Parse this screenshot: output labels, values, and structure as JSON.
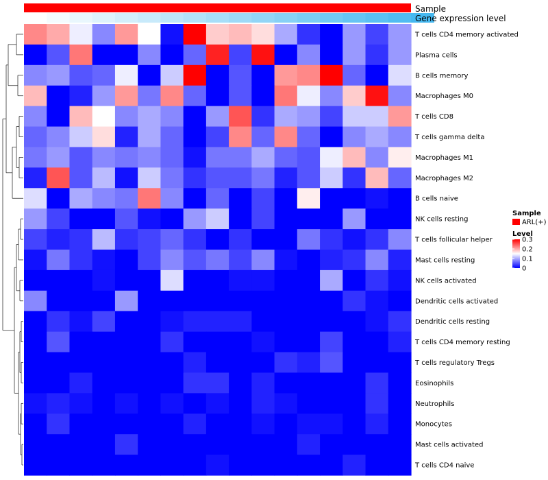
{
  "colors": {
    "low": "#0000ff",
    "mid": "#ffffff",
    "high": "#ff0000",
    "sample_bar": "#ff0000",
    "gene_expr_start": "#ffffff",
    "gene_expr_end": "#45b8f0",
    "dendrogram": "#333333"
  },
  "chart_data": {
    "type": "heatmap",
    "annotations": {
      "sample_label": "Sample",
      "gene_expression_label": "Gene expression level",
      "gene_expression_values": [
        0.0,
        0.059,
        0.118,
        0.176,
        0.235,
        0.294,
        0.353,
        0.412,
        0.471,
        0.529,
        0.588,
        0.647,
        0.706,
        0.765,
        0.824,
        0.882,
        0.941,
        1.0
      ]
    },
    "legend": {
      "sample_title": "Sample",
      "sample_entry": "ARL(+)",
      "level_title": "Level",
      "ticks": [
        "0.3",
        "0.2",
        "0.1",
        "0"
      ],
      "tick_values": [
        0.3,
        0.2,
        0.1,
        0
      ],
      "range": [
        0,
        0.3
      ]
    },
    "rows": [
      "T cells CD4 memory activated",
      "Plasma cells",
      "B cells memory",
      "Macrophages M0",
      "T cells CD8",
      "T cells gamma delta",
      "Macrophages M1",
      "Macrophages M2",
      "B cells naive",
      "NK cells resting",
      "T cells follicular helper",
      "Mast cells resting",
      "NK cells activated",
      "Dendritic cells activated",
      "Dendritic cells resting",
      "T cells CD4 memory resting",
      "T cells regulatory  Tregs",
      "Eosinophils",
      "Neutrophils",
      "Monocytes",
      "Mast cells activated",
      "T cells CD4 naive"
    ],
    "values": [
      [
        0.22,
        0.2,
        0.14,
        0.08,
        0.21,
        0.15,
        0.01,
        0.3,
        0.18,
        0.19,
        0.17,
        0.1,
        0.03,
        0.0,
        0.09,
        0.04,
        0.09
      ],
      [
        0.0,
        0.05,
        0.23,
        0.0,
        0.0,
        0.08,
        0.0,
        0.06,
        0.28,
        0.04,
        0.29,
        0.0,
        0.08,
        0.0,
        0.09,
        0.03,
        0.09
      ],
      [
        0.08,
        0.09,
        0.05,
        0.06,
        0.14,
        0.0,
        0.12,
        0.3,
        0.0,
        0.05,
        0.0,
        0.21,
        0.22,
        0.3,
        0.06,
        0.0,
        0.13
      ],
      [
        0.19,
        0.0,
        0.02,
        0.09,
        0.21,
        0.07,
        0.22,
        0.06,
        0.0,
        0.05,
        0.0,
        0.23,
        0.14,
        0.08,
        0.18,
        0.29,
        0.08
      ],
      [
        0.08,
        0.0,
        0.19,
        0.15,
        0.08,
        0.1,
        0.08,
        0.0,
        0.09,
        0.25,
        0.03,
        0.1,
        0.09,
        0.04,
        0.12,
        0.12,
        0.21
      ],
      [
        0.06,
        0.08,
        0.12,
        0.17,
        0.02,
        0.1,
        0.06,
        0.0,
        0.04,
        0.22,
        0.06,
        0.22,
        0.06,
        0.0,
        0.08,
        0.1,
        0.08
      ],
      [
        0.07,
        0.09,
        0.05,
        0.08,
        0.07,
        0.08,
        0.06,
        0.01,
        0.07,
        0.07,
        0.1,
        0.06,
        0.05,
        0.14,
        0.19,
        0.08,
        0.16
      ],
      [
        0.02,
        0.25,
        0.05,
        0.11,
        0.01,
        0.12,
        0.07,
        0.03,
        0.05,
        0.05,
        0.07,
        0.02,
        0.05,
        0.12,
        0.03,
        0.19,
        0.06
      ],
      [
        0.13,
        0.0,
        0.1,
        0.08,
        0.07,
        0.23,
        0.08,
        0.0,
        0.06,
        0.0,
        0.04,
        0.0,
        0.16,
        0.0,
        0.0,
        0.01,
        0.0
      ],
      [
        0.09,
        0.04,
        0.0,
        0.0,
        0.05,
        0.01,
        0.0,
        0.09,
        0.12,
        0.0,
        0.04,
        0.0,
        0.0,
        0.0,
        0.09,
        0.0,
        0.0
      ],
      [
        0.04,
        0.02,
        0.03,
        0.11,
        0.03,
        0.04,
        0.06,
        0.03,
        0.0,
        0.03,
        0.0,
        0.0,
        0.07,
        0.03,
        0.01,
        0.03,
        0.08
      ],
      [
        0.01,
        0.07,
        0.03,
        0.01,
        0.0,
        0.04,
        0.08,
        0.05,
        0.07,
        0.04,
        0.08,
        0.01,
        0.0,
        0.02,
        0.03,
        0.08,
        0.02
      ],
      [
        0.0,
        0.0,
        0.0,
        0.01,
        0.0,
        0.0,
        0.13,
        0.0,
        0.0,
        0.01,
        0.01,
        0.0,
        0.0,
        0.1,
        0.0,
        0.03,
        0.01
      ],
      [
        0.08,
        0.0,
        0.0,
        0.0,
        0.09,
        0.0,
        0.0,
        0.0,
        0.0,
        0.0,
        0.0,
        0.0,
        0.0,
        0.0,
        0.03,
        0.01,
        0.0
      ],
      [
        0.0,
        0.03,
        0.01,
        0.04,
        0.0,
        0.0,
        0.01,
        0.02,
        0.02,
        0.02,
        0.0,
        0.0,
        0.0,
        0.0,
        0.0,
        0.01,
        0.03
      ],
      [
        0.0,
        0.05,
        0.0,
        0.0,
        0.0,
        0.0,
        0.03,
        0.0,
        0.0,
        0.0,
        0.01,
        0.0,
        0.0,
        0.04,
        0.0,
        0.0,
        0.02
      ],
      [
        0.0,
        0.0,
        0.0,
        0.0,
        0.0,
        0.0,
        0.0,
        0.02,
        0.0,
        0.0,
        0.0,
        0.03,
        0.02,
        0.05,
        0.0,
        0.0,
        0.0
      ],
      [
        0.0,
        0.0,
        0.02,
        0.0,
        0.0,
        0.0,
        0.0,
        0.03,
        0.03,
        0.0,
        0.02,
        0.0,
        0.0,
        0.0,
        0.0,
        0.03,
        0.0
      ],
      [
        0.01,
        0.02,
        0.01,
        0.0,
        0.01,
        0.0,
        0.01,
        0.0,
        0.01,
        0.0,
        0.02,
        0.01,
        0.0,
        0.0,
        0.0,
        0.03,
        0.0
      ],
      [
        0.0,
        0.03,
        0.0,
        0.0,
        0.0,
        0.0,
        0.0,
        0.02,
        0.0,
        0.0,
        0.01,
        0.0,
        0.01,
        0.01,
        0.0,
        0.02,
        0.0
      ],
      [
        0.0,
        0.0,
        0.0,
        0.0,
        0.03,
        0.0,
        0.0,
        0.0,
        0.0,
        0.0,
        0.0,
        0.0,
        0.02,
        0.0,
        0.0,
        0.0,
        0.0
      ],
      [
        0.0,
        0.0,
        0.0,
        0.0,
        0.0,
        0.0,
        0.0,
        0.0,
        0.01,
        0.0,
        0.0,
        0.0,
        0.0,
        0.0,
        0.02,
        0.0,
        0.0
      ]
    ]
  }
}
